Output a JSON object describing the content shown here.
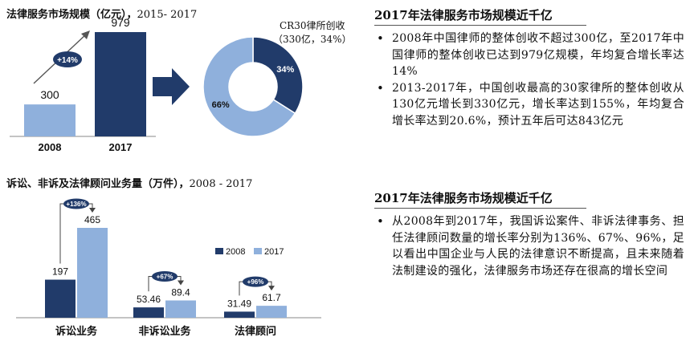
{
  "colors": {
    "dark": "#213b6a",
    "light": "#8fb0dc",
    "arrow": "#1f3761"
  },
  "left_top": {
    "title": "法律服务市场规模（亿元），",
    "year_range": "2015- 2017",
    "growth_badge": "+14%"
  },
  "left_bottom": {
    "title": "诉讼、非诉及法律顾问业务量（万件），",
    "year_range": "2008 - 2017"
  },
  "right_top": {
    "heading": "2017年法律服务市场规模近千亿",
    "bullets": [
      "2008年中国律师的整体创收不超过300亿，至2017年中国律师的整体创收已达到979亿规模，年均复合增长率达14%",
      "2013-2017年，中国创收最高的30家律所的整体创收从130亿元增长到330亿元，增长率达到155%，年均复合增长率达到20.6%，预计五年后可达843亿元"
    ]
  },
  "right_bottom": {
    "heading": "2017年法律服务市场规模近千亿",
    "bullets": [
      "从2008年到2017年，我国诉讼案件、非诉法律事务、担任法律顾问数量的增长率分别为136%、67%、96%，足以看出中国企业与人民的法律意识不断提高，且未来随着法制建设的强化，法律服务市场还存在很高的增长空间"
    ]
  },
  "chart_data": [
    {
      "type": "bar",
      "categories": [
        "2008",
        "2017"
      ],
      "values": [
        300,
        979
      ],
      "data_labels": [
        "300",
        "979"
      ]
    },
    {
      "type": "pie",
      "donut": true,
      "annotation_lines": [
        "CR30律所创收",
        "（330亿，34%）"
      ],
      "slices": [
        {
          "label": "34%",
          "value": 34,
          "color": "#213b6a"
        },
        {
          "label": "66%",
          "value": 66,
          "color": "#8fb0dc"
        }
      ]
    },
    {
      "type": "bar",
      "categories": [
        "诉讼业务",
        "非诉讼业务",
        "法律顾问"
      ],
      "series": [
        {
          "name": "2008",
          "values": [
            197,
            53.46,
            31.49
          ],
          "labels": [
            "197",
            "53.46",
            "31.49"
          ],
          "color": "#213b6a"
        },
        {
          "name": "2017",
          "values": [
            465,
            89.4,
            61.7
          ],
          "labels": [
            "465",
            "89.4",
            "61.7"
          ],
          "color": "#8fb0dc"
        }
      ],
      "growth": [
        "+136%",
        "+67%",
        "+96%"
      ]
    }
  ]
}
